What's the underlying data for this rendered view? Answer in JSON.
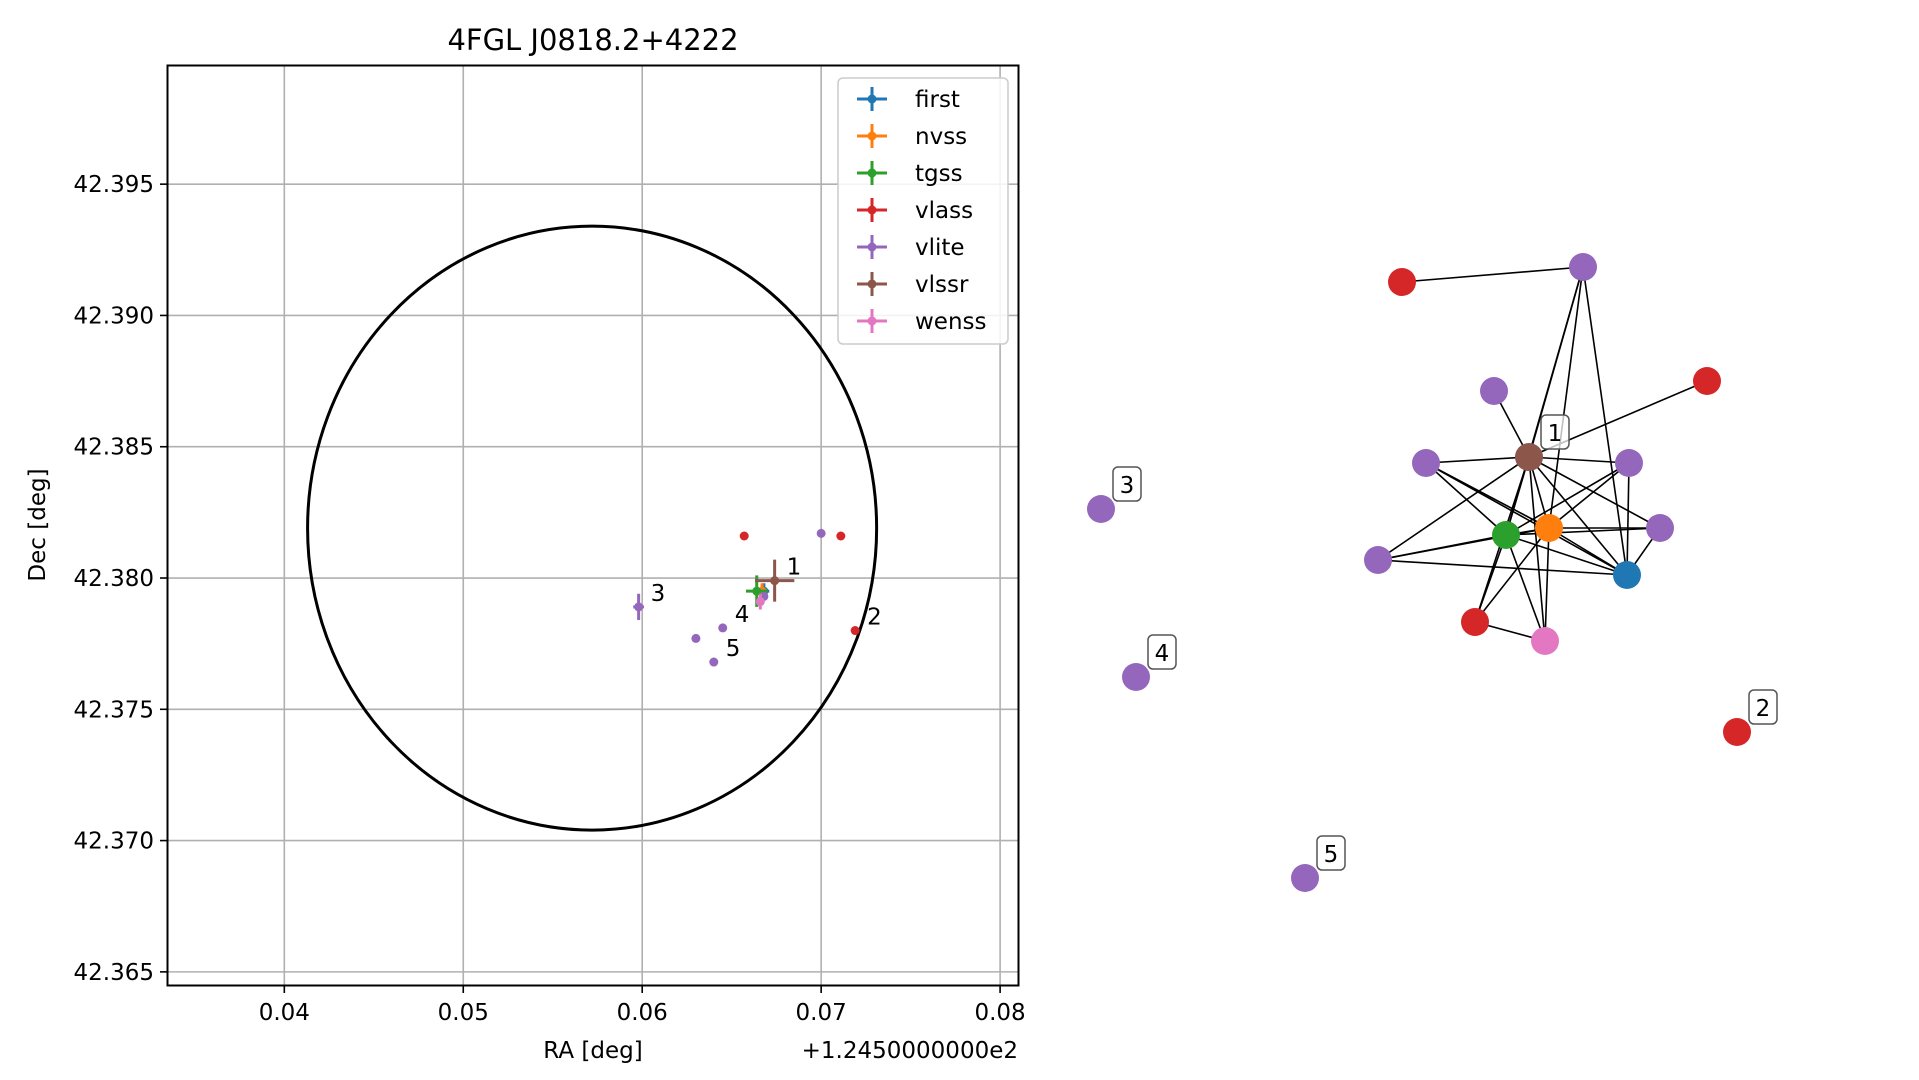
{
  "chart_data": [
    {
      "type": "scatter",
      "title": "4FGL J0818.2+4222",
      "xlabel": "RA [deg]",
      "ylabel": "Dec [deg]",
      "x_offset_label": "+1.2450000000e2",
      "xlim": [
        0.0335,
        0.081
      ],
      "ylim": [
        42.3645,
        42.3995
      ],
      "xticks": [
        0.04,
        0.05,
        0.06,
        0.07,
        0.08
      ],
      "xtick_labels": [
        "0.04",
        "0.05",
        "0.06",
        "0.07",
        "0.08"
      ],
      "yticks": [
        42.365,
        42.37,
        42.375,
        42.38,
        42.385,
        42.39,
        42.395
      ],
      "ytick_labels": [
        "42.365",
        "42.370",
        "42.375",
        "42.380",
        "42.385",
        "42.390",
        "42.395"
      ],
      "grid": true,
      "legend_position": "top-right",
      "ellipse": {
        "center": [
          0.0572,
          42.3819
        ],
        "radius_x": 0.0159,
        "radius_y": 0.0115,
        "color": "#000000"
      },
      "series": [
        {
          "name": "first",
          "color": "#1f77b4",
          "points": [
            {
              "x": 0.0668,
              "y": 42.3795,
              "xerr": 0.0003,
              "yerr": 0.0003
            }
          ]
        },
        {
          "name": "nvss",
          "color": "#ff7f0e",
          "points": [
            {
              "x": 0.0667,
              "y": 42.3795,
              "xerr": 0.0003,
              "yerr": 0.0003
            }
          ]
        },
        {
          "name": "tgss",
          "color": "#2ca02c",
          "points": [
            {
              "x": 0.0664,
              "y": 42.3795,
              "xerr": 0.0006,
              "yerr": 0.0006
            }
          ]
        },
        {
          "name": "vlass",
          "color": "#d62728",
          "points": [
            {
              "x": 0.0657,
              "y": 42.3816,
              "xerr": 0,
              "yerr": 0
            },
            {
              "x": 0.0711,
              "y": 42.3816,
              "xerr": 0,
              "yerr": 0
            },
            {
              "x": 0.0719,
              "y": 42.378,
              "xerr": 0,
              "yerr": 0
            }
          ]
        },
        {
          "name": "vlite",
          "color": "#9467bd",
          "points": [
            {
              "x": 0.07,
              "y": 42.3817,
              "xerr": 0,
              "yerr": 0
            },
            {
              "x": 0.0598,
              "y": 42.3789,
              "xerr": 0.0003,
              "yerr": 0.0005
            },
            {
              "x": 0.0645,
              "y": 42.3781,
              "xerr": 0,
              "yerr": 0
            },
            {
              "x": 0.063,
              "y": 42.3777,
              "xerr": 0,
              "yerr": 0
            },
            {
              "x": 0.064,
              "y": 42.3768,
              "xerr": 0,
              "yerr": 0
            },
            {
              "x": 0.0668,
              "y": 42.3793,
              "xerr": 0,
              "yerr": 0
            }
          ]
        },
        {
          "name": "vlssr",
          "color": "#8c564b",
          "points": [
            {
              "x": 0.0674,
              "y": 42.3799,
              "xerr": 0.0011,
              "yerr": 0.0008
            }
          ]
        },
        {
          "name": "wenss",
          "color": "#e377c2",
          "points": [
            {
              "x": 0.0666,
              "y": 42.3791,
              "xerr": 0.0002,
              "yerr": 0.0003
            }
          ]
        }
      ],
      "annotations": [
        {
          "text": "1",
          "x": 0.0674,
          "y": 42.3799
        },
        {
          "text": "2",
          "x": 0.0719,
          "y": 42.378
        },
        {
          "text": "3",
          "x": 0.0598,
          "y": 42.3789
        },
        {
          "text": "4",
          "x": 0.0645,
          "y": 42.3781
        },
        {
          "text": "5",
          "x": 0.064,
          "y": 42.3768
        }
      ]
    },
    {
      "type": "network",
      "nodes": [
        {
          "id": "vlssr",
          "color": "#8c564b",
          "label": "1"
        },
        {
          "id": "nvss",
          "color": "#ff7f0e"
        },
        {
          "id": "tgss",
          "color": "#2ca02c"
        },
        {
          "id": "first",
          "color": "#1f77b4"
        },
        {
          "id": "wenss",
          "color": "#e377c2"
        },
        {
          "id": "vlass_a",
          "color": "#d62728"
        },
        {
          "id": "vlass_b",
          "color": "#d62728"
        },
        {
          "id": "vlass_c",
          "color": "#d62728"
        },
        {
          "id": "vlite_a",
          "color": "#9467bd"
        },
        {
          "id": "vlite_b",
          "color": "#9467bd"
        },
        {
          "id": "vlite_c",
          "color": "#9467bd"
        },
        {
          "id": "vlite_d",
          "color": "#9467bd"
        },
        {
          "id": "vlite_e",
          "color": "#9467bd"
        },
        {
          "id": "vlite_f",
          "color": "#9467bd"
        },
        {
          "id": "iso_3",
          "color": "#9467bd",
          "label": "3"
        },
        {
          "id": "iso_4",
          "color": "#9467bd",
          "label": "4"
        },
        {
          "id": "iso_5",
          "color": "#9467bd",
          "label": "5"
        },
        {
          "id": "iso_2",
          "color": "#d62728",
          "label": "2"
        }
      ],
      "edges": [
        [
          "vlass_a",
          "vlite_a"
        ],
        [
          "vlite_b",
          "vlssr"
        ],
        [
          "vlass_b",
          "vlssr"
        ],
        [
          "vlite_a",
          "vlssr"
        ],
        [
          "vlite_a",
          "tgss"
        ],
        [
          "vlite_a",
          "nvss"
        ],
        [
          "vlite_a",
          "first"
        ],
        [
          "vlite_c",
          "vlssr"
        ],
        [
          "vlite_c",
          "tgss"
        ],
        [
          "vlite_c",
          "nvss"
        ],
        [
          "vlite_c",
          "first"
        ],
        [
          "vlite_d",
          "vlssr"
        ],
        [
          "vlite_d",
          "tgss"
        ],
        [
          "vlite_d",
          "nvss"
        ],
        [
          "vlite_d",
          "first"
        ],
        [
          "vlite_e",
          "vlssr"
        ],
        [
          "vlite_e",
          "tgss"
        ],
        [
          "vlite_e",
          "nvss"
        ],
        [
          "vlite_e",
          "first"
        ],
        [
          "vlite_f",
          "vlssr"
        ],
        [
          "vlite_f",
          "tgss"
        ],
        [
          "vlite_f",
          "nvss"
        ],
        [
          "vlite_f",
          "first"
        ],
        [
          "vlssr",
          "tgss"
        ],
        [
          "vlssr",
          "nvss"
        ],
        [
          "vlssr",
          "first"
        ],
        [
          "vlssr",
          "wenss"
        ],
        [
          "vlssr",
          "vlass_c"
        ],
        [
          "tgss",
          "nvss"
        ],
        [
          "tgss",
          "first"
        ],
        [
          "tgss",
          "wenss"
        ],
        [
          "tgss",
          "vlass_c"
        ],
        [
          "nvss",
          "first"
        ],
        [
          "nvss",
          "wenss"
        ],
        [
          "nvss",
          "vlass_c"
        ],
        [
          "wenss",
          "vlass_c"
        ]
      ]
    }
  ]
}
